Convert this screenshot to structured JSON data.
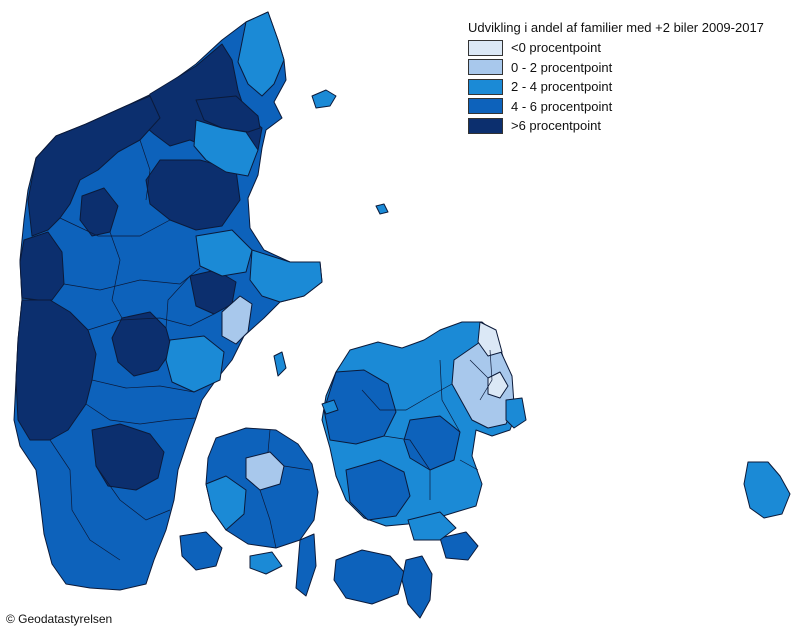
{
  "legend": {
    "title": "Udvikling i andel af familier med +2 biler 2009-2017",
    "items": [
      {
        "label": "<0 procentpoint",
        "color": "#dbe8f6"
      },
      {
        "label": "0 - 2 procentpoint",
        "color": "#a8c8ec"
      },
      {
        "label": "2 - 4 procentpoint",
        "color": "#1b8ad6"
      },
      {
        "label": "4 - 6 procentpoint",
        "color": "#0d62bb"
      },
      {
        "label": ">6 procentpoint",
        "color": "#0c2f6e"
      }
    ]
  },
  "credit": "© Geodatastyrelsen"
}
